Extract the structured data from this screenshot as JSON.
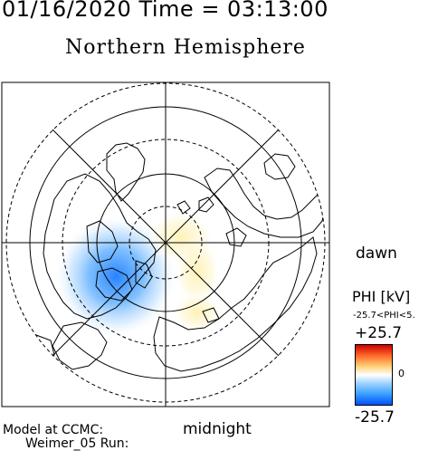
{
  "header": {
    "datetime": "01/16/2020 Time = 03:13:00",
    "hemisphere": "Northern Hemisphere"
  },
  "labels": {
    "dawn": "dawn",
    "midnight": "midnight"
  },
  "colorbar": {
    "quantity": "PHI [kV]",
    "range_text": "-25.7<PHI<5.",
    "max_label": "+25.7",
    "zero_label": "0",
    "min_label": "-25.7",
    "colors": {
      "max": "#cc0000",
      "zero": "#ffffff",
      "min": "#0050ff"
    }
  },
  "footer": {
    "model_line": "Model at CCMC:",
    "run_line": "Weimer_05 Run:"
  }
}
